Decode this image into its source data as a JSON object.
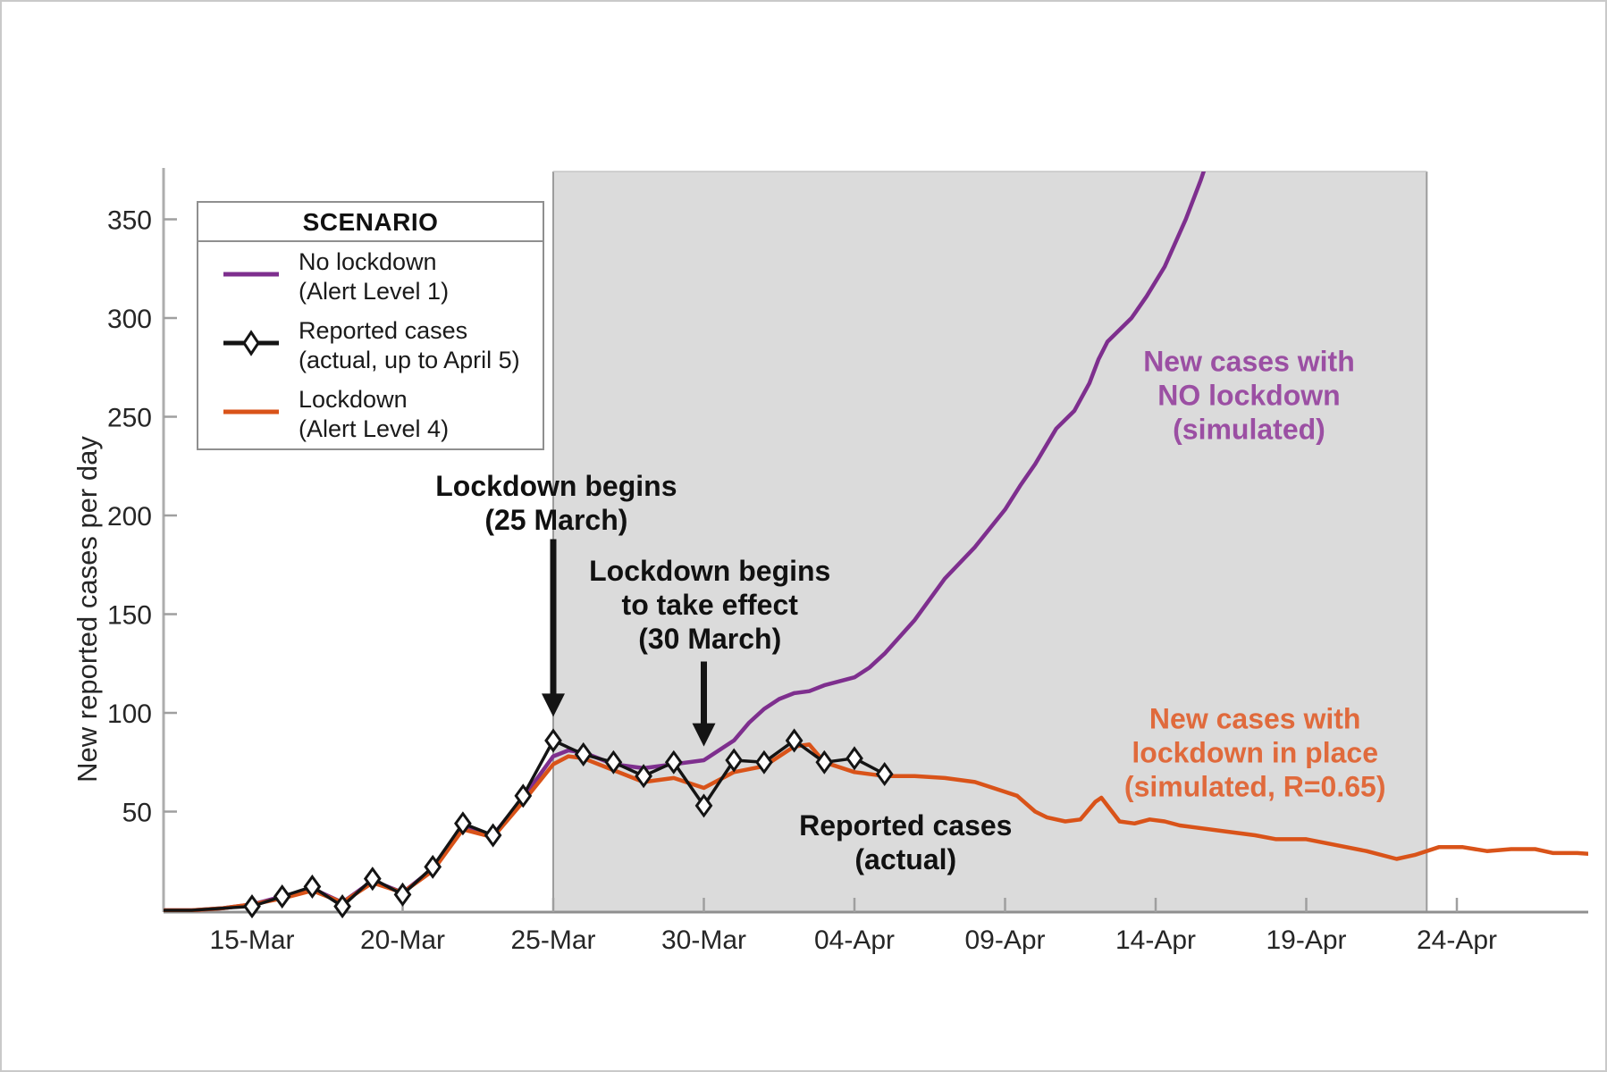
{
  "window": {
    "background": "#ffffff",
    "border_color": "#c9c9c9"
  },
  "legend": {
    "title": "SCENARIO",
    "items": [
      {
        "label_line1": "No lockdown",
        "label_line2": "(Alert Level 1)",
        "color": "#7E2F8E",
        "marker": "line"
      },
      {
        "label_line1": "Reported cases",
        "label_line2": "(actual, up to April 5)",
        "color": "#141414",
        "marker": "line-diamond"
      },
      {
        "label_line1": "Lockdown",
        "label_line2": "(Alert Level 4)",
        "color": "#D95319",
        "marker": "line"
      }
    ]
  },
  "chart_data": {
    "type": "line",
    "title": "",
    "xlabel": "",
    "ylabel": "New reported cases per day",
    "x_day0_date": "15-Mar",
    "x_tick_days": [
      0,
      5,
      10,
      15,
      20,
      25,
      30,
      35,
      40
    ],
    "x_tick_labels": [
      "15-Mar",
      "20-Mar",
      "25-Mar",
      "30-Mar",
      "04-Apr",
      "09-Apr",
      "14-Apr",
      "19-Apr",
      "24-Apr"
    ],
    "y_ticks": [
      50,
      100,
      150,
      200,
      250,
      300,
      350
    ],
    "ylim": [
      0,
      374
    ],
    "x_day_range": [
      -2.9,
      44.9
    ],
    "grid": false,
    "legend_position": "top-left",
    "shaded_region": {
      "start_day": 10.0,
      "end_day": 39.0,
      "fill": "#dbdbdb",
      "edge": "#9c9c9c"
    },
    "series": [
      {
        "id": "no_lockdown",
        "name": "No lockdown (Alert Level 1)",
        "color": "#7E2F8E",
        "width": 4.5,
        "marker": "none",
        "points": [
          [
            -2.9,
            0
          ],
          [
            -2,
            0
          ],
          [
            -1,
            1
          ],
          [
            0,
            3
          ],
          [
            1,
            7
          ],
          [
            2,
            11
          ],
          [
            3,
            4
          ],
          [
            4,
            15
          ],
          [
            5,
            9
          ],
          [
            6,
            21
          ],
          [
            7,
            42
          ],
          [
            8,
            38
          ],
          [
            9,
            57
          ],
          [
            10,
            78
          ],
          [
            10.5,
            81
          ],
          [
            11,
            80
          ],
          [
            12,
            74
          ],
          [
            13,
            72
          ],
          [
            14,
            74
          ],
          [
            15,
            76
          ],
          [
            16,
            86
          ],
          [
            16.5,
            95
          ],
          [
            17,
            102
          ],
          [
            17.5,
            107
          ],
          [
            18,
            110
          ],
          [
            18.5,
            111
          ],
          [
            19,
            114
          ],
          [
            20,
            118
          ],
          [
            20.5,
            123
          ],
          [
            21,
            130
          ],
          [
            22,
            147
          ],
          [
            23,
            168
          ],
          [
            24,
            184
          ],
          [
            25,
            203
          ],
          [
            25.5,
            215
          ],
          [
            26,
            226
          ],
          [
            26.7,
            244
          ],
          [
            27.3,
            253
          ],
          [
            27.8,
            267
          ],
          [
            28.1,
            279
          ],
          [
            28.4,
            288
          ],
          [
            29.2,
            300
          ],
          [
            29.7,
            311
          ],
          [
            30.3,
            326
          ],
          [
            31,
            350
          ],
          [
            31.5,
            370
          ],
          [
            31.9,
            388
          ]
        ]
      },
      {
        "id": "reported",
        "name": "Reported cases (actual, up to April 5)",
        "color": "#141414",
        "width": 3.5,
        "marker": "diamond",
        "points": [
          [
            -2.9,
            0
          ],
          [
            -2,
            0
          ],
          [
            -1,
            1
          ],
          [
            0,
            2
          ],
          [
            1,
            7
          ],
          [
            2,
            12
          ],
          [
            3,
            2
          ],
          [
            4,
            16
          ],
          [
            5,
            8
          ],
          [
            6,
            22
          ],
          [
            7,
            44
          ],
          [
            8,
            38
          ],
          [
            9,
            58
          ],
          [
            10,
            86
          ],
          [
            11,
            79
          ],
          [
            12,
            75
          ],
          [
            13,
            68
          ],
          [
            14,
            75
          ],
          [
            15,
            53
          ],
          [
            16,
            76
          ],
          [
            17,
            75
          ],
          [
            18,
            86
          ],
          [
            19,
            75
          ],
          [
            20,
            77
          ],
          [
            21,
            69
          ]
        ]
      },
      {
        "id": "lockdown",
        "name": "Lockdown (Alert Level 4)",
        "color": "#D95319",
        "width": 4.5,
        "marker": "none",
        "points": [
          [
            -2.9,
            0
          ],
          [
            -2,
            0
          ],
          [
            -1,
            1
          ],
          [
            0,
            3
          ],
          [
            1,
            6
          ],
          [
            2,
            10
          ],
          [
            3,
            4
          ],
          [
            4,
            14
          ],
          [
            5,
            9
          ],
          [
            6,
            20
          ],
          [
            7,
            41
          ],
          [
            8,
            37
          ],
          [
            9,
            55
          ],
          [
            10,
            74
          ],
          [
            10.5,
            78
          ],
          [
            11,
            77
          ],
          [
            12,
            71
          ],
          [
            13,
            65
          ],
          [
            14,
            67
          ],
          [
            15,
            62
          ],
          [
            16,
            70
          ],
          [
            17,
            73
          ],
          [
            18,
            83
          ],
          [
            18.5,
            84
          ],
          [
            19,
            75
          ],
          [
            20,
            70
          ],
          [
            21,
            68
          ],
          [
            22,
            68
          ],
          [
            23,
            67
          ],
          [
            24,
            65
          ],
          [
            25,
            60
          ],
          [
            25.4,
            58
          ],
          [
            26,
            50
          ],
          [
            26.4,
            47
          ],
          [
            27,
            45
          ],
          [
            27.5,
            46
          ],
          [
            28,
            55
          ],
          [
            28.2,
            57
          ],
          [
            28.8,
            45
          ],
          [
            29.3,
            44
          ],
          [
            29.8,
            46
          ],
          [
            30.3,
            45
          ],
          [
            30.8,
            43
          ],
          [
            31.3,
            42
          ],
          [
            32.3,
            40
          ],
          [
            33.3,
            38
          ],
          [
            34,
            36
          ],
          [
            35,
            36
          ],
          [
            36,
            33
          ],
          [
            37,
            30
          ],
          [
            38,
            26
          ],
          [
            38.6,
            28
          ],
          [
            39.4,
            32
          ],
          [
            40.2,
            32
          ],
          [
            41,
            30
          ],
          [
            41.8,
            31
          ],
          [
            42.6,
            31
          ],
          [
            43.2,
            29
          ],
          [
            44,
            29
          ],
          [
            44.9,
            28
          ]
        ]
      }
    ],
    "annotations": [
      {
        "id": "lockdown-begins",
        "color": "#111111",
        "lines": [
          "Lockdown begins",
          "(25 March)"
        ],
        "day": 10.1,
        "value": 215,
        "arrow": {
          "day": 10.0,
          "from_value": 188,
          "to_value": 98
        }
      },
      {
        "id": "take-effect",
        "color": "#111111",
        "lines": [
          "Lockdown begins",
          "to take effect",
          "(30 March)"
        ],
        "day": 15.2,
        "value": 172,
        "arrow": {
          "day": 15.0,
          "from_value": 126,
          "to_value": 83
        }
      },
      {
        "id": "no-lockdown-label",
        "color": "#9B4FA3",
        "lines": [
          "New cases with",
          "NO lockdown",
          "(simulated)"
        ],
        "day": 33.1,
        "value": 278
      },
      {
        "id": "lockdown-label",
        "color": "#E06A3C",
        "lines": [
          "New cases with",
          "lockdown in place",
          "(simulated, R=0.65)"
        ],
        "day": 33.3,
        "value": 97
      },
      {
        "id": "reported-label",
        "color": "#111111",
        "lines": [
          "Reported cases",
          "(actual)"
        ],
        "day": 21.7,
        "value": 43
      }
    ],
    "axis_style": {
      "y_axis_color": "#adadad",
      "x_axis_color": "#8f8f8f",
      "tick_color": "#9f9f9f",
      "tick_label_color": "#262626"
    }
  }
}
